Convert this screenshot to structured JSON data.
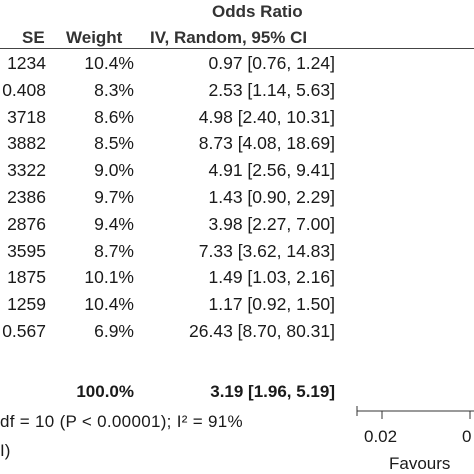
{
  "chart_data": {
    "type": "table",
    "title": "Odds Ratio",
    "columns": [
      "SE",
      "Weight",
      "IV, Random, 95% CI"
    ],
    "rows": [
      {
        "se": "1234",
        "weight": "10.4%",
        "ci": "0.97 [0.76, 1.24]"
      },
      {
        "se": "0.408",
        "weight": "8.3%",
        "ci": "2.53 [1.14, 5.63]"
      },
      {
        "se": "3718",
        "weight": "8.6%",
        "ci": "4.98 [2.40, 10.31]"
      },
      {
        "se": "3882",
        "weight": "8.5%",
        "ci": "8.73 [4.08, 18.69]"
      },
      {
        "se": "3322",
        "weight": "9.0%",
        "ci": "4.91 [2.56, 9.41]"
      },
      {
        "se": "2386",
        "weight": "9.7%",
        "ci": "1.43 [0.90, 2.29]"
      },
      {
        "se": "2876",
        "weight": "9.4%",
        "ci": "3.98 [2.27, 7.00]"
      },
      {
        "se": "3595",
        "weight": "8.7%",
        "ci": "7.33 [3.62, 14.83]"
      },
      {
        "se": "1875",
        "weight": "10.1%",
        "ci": "1.49 [1.03, 2.16]"
      },
      {
        "se": "1259",
        "weight": "10.4%",
        "ci": "1.17 [0.92, 1.50]"
      },
      {
        "se": "0.567",
        "weight": "6.9%",
        "ci": "26.43 [8.70, 80.31]"
      }
    ],
    "total": {
      "weight": "100.0%",
      "ci": "3.19 [1.96, 5.19]"
    },
    "heterogeneity": "df = 10 (P < 0.00001); I² = 91%",
    "overall_fragment": "I)",
    "axis": {
      "tick_labels": [
        "0.02",
        "0"
      ],
      "caption": "Favours"
    }
  }
}
